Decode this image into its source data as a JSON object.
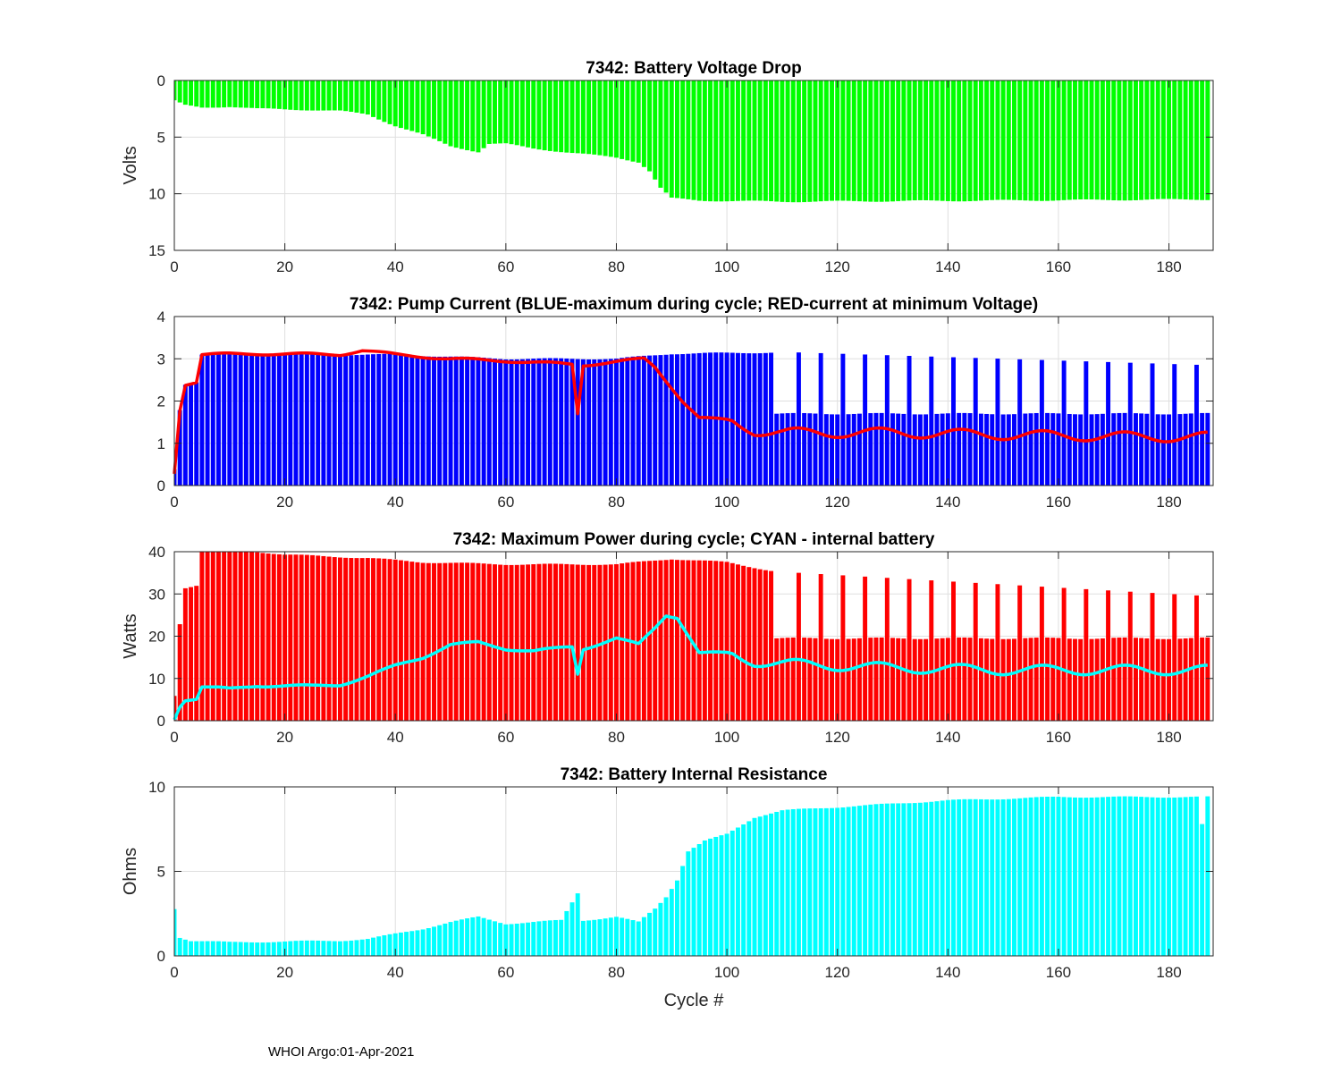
{
  "footer": "WHOI Argo:01-Apr-2021",
  "colors": {
    "green": "#00ff00",
    "blue": "#0000ff",
    "red": "#ff0000",
    "cyan": "#00ffff",
    "axis": "#262626",
    "grid": "#dfdfdf"
  },
  "x_axis": {
    "label": "Cycle #",
    "ticks": [
      0,
      20,
      40,
      60,
      80,
      100,
      120,
      140,
      160,
      180
    ],
    "xlim": [
      0,
      188
    ]
  },
  "chart_data": [
    {
      "type": "bar",
      "title": "7342: Battery Voltage Drop",
      "ylabel": "Volts",
      "xlabel": "",
      "ylim": [
        0,
        15
      ],
      "reversed_y": true,
      "yticks": [
        0,
        5,
        10,
        15
      ],
      "series": [
        {
          "name": "Voltage drop",
          "color": "#00ff00",
          "breakpoints": [
            [
              0,
              1.8
            ],
            [
              1,
              2
            ],
            [
              2,
              2.2
            ],
            [
              5,
              2.4
            ],
            [
              10,
              2.3
            ],
            [
              15,
              2.5
            ],
            [
              25,
              2.6
            ],
            [
              30,
              2.7
            ],
            [
              35,
              3
            ],
            [
              40,
              4
            ],
            [
              45,
              4.8
            ],
            [
              50,
              5.8
            ],
            [
              55,
              6.3
            ],
            [
              57,
              5.6
            ],
            [
              60,
              5.6
            ],
            [
              65,
              6
            ],
            [
              72,
              6.4
            ],
            [
              80,
              6.8
            ],
            [
              84,
              7.2
            ],
            [
              86,
              8
            ],
            [
              88,
              9.5
            ],
            [
              90,
              10.4
            ],
            [
              95,
              10.6
            ],
            [
              110,
              10.7
            ],
            [
              187,
              10.5
            ]
          ]
        }
      ]
    },
    {
      "type": "bar",
      "title": "7342: Pump Current (BLUE-maximum during cycle; RED-current at minimum Voltage)",
      "ylabel": "",
      "xlabel": "",
      "ylim": [
        0,
        4
      ],
      "yticks": [
        0,
        1,
        2,
        3,
        4
      ],
      "series": [
        {
          "name": "Maximum pump current",
          "color": "#0000ff",
          "breakpoints": [
            [
              0,
              0.4
            ],
            [
              1,
              1.8
            ],
            [
              2,
              2.4
            ],
            [
              4,
              2.45
            ],
            [
              5,
              3.1
            ],
            [
              20,
              3.1
            ],
            [
              40,
              3.1
            ],
            [
              60,
              3.0
            ],
            [
              80,
              3.0
            ],
            [
              90,
              3.12
            ],
            [
              108,
              3.15
            ]
          ],
          "after_cycle_108": {
            "base": 1.7,
            "spike": 3.15,
            "spike_period": 4,
            "spike_start": 113,
            "spike_decline_to": 2.85
          }
        },
        {
          "name": "Current at minimum voltage",
          "color": "#ff0000",
          "type": "line",
          "breakpoints": [
            [
              0,
              0.3
            ],
            [
              1,
              1.8
            ],
            [
              2,
              2.4
            ],
            [
              4,
              2.45
            ],
            [
              5,
              3.1
            ],
            [
              15,
              3.12
            ],
            [
              30,
              3.1
            ],
            [
              34,
              3.2
            ],
            [
              40,
              3.1
            ],
            [
              50,
              3.0
            ],
            [
              60,
              2.95
            ],
            [
              72,
              2.87
            ],
            [
              73,
              1.7
            ],
            [
              74,
              2.85
            ],
            [
              85,
              3.0
            ],
            [
              87,
              2.8
            ],
            [
              92,
              2.0
            ],
            [
              95,
              1.6
            ],
            [
              100,
              1.55
            ],
            [
              105,
              1.3
            ],
            [
              110,
              1.25
            ],
            [
              130,
              1.25
            ],
            [
              150,
              1.2
            ],
            [
              175,
              1.15
            ],
            [
              187,
              1.15
            ]
          ],
          "dips": [
            [
              73,
              1.7
            ]
          ]
        }
      ]
    },
    {
      "type": "bar",
      "title": "7342: Maximum Power during cycle; CYAN - internal battery",
      "ylabel": "Watts",
      "xlabel": "",
      "ylim": [
        0,
        40
      ],
      "yticks": [
        0,
        10,
        20,
        30,
        40
      ],
      "series": [
        {
          "name": "Maximum power",
          "color": "#ff0000",
          "breakpoints": [
            [
              0,
              6
            ],
            [
              1,
              23
            ],
            [
              2,
              31.5
            ],
            [
              4,
              32
            ],
            [
              5,
              40
            ],
            [
              15,
              40
            ],
            [
              20,
              39.3
            ],
            [
              35,
              38.5
            ],
            [
              45,
              37.5
            ],
            [
              60,
              37
            ],
            [
              80,
              37
            ],
            [
              90,
              38.3
            ],
            [
              100,
              37.5
            ],
            [
              108,
              35.5
            ]
          ],
          "after_cycle_108": {
            "base": 19.5,
            "spike": 35,
            "spike_period": 4,
            "spike_start": 113,
            "spike_decline_to": 29.5
          }
        },
        {
          "name": "Internal battery",
          "color": "#00ffff",
          "type": "line",
          "breakpoints": [
            [
              0,
              0.5
            ],
            [
              1,
              3.5
            ],
            [
              2,
              5
            ],
            [
              4,
              5.2
            ],
            [
              5,
              8
            ],
            [
              10,
              7.5
            ],
            [
              15,
              8.3
            ],
            [
              25,
              8.2
            ],
            [
              30,
              8.5
            ],
            [
              35,
              10.5
            ],
            [
              40,
              13
            ],
            [
              45,
              15
            ],
            [
              50,
              18
            ],
            [
              55,
              18.5
            ],
            [
              60,
              17
            ],
            [
              65,
              16.5
            ],
            [
              72,
              17.5
            ],
            [
              73,
              11
            ],
            [
              74,
              17
            ],
            [
              80,
              19.5
            ],
            [
              84,
              18
            ],
            [
              87,
              22
            ],
            [
              89,
              25
            ],
            [
              91,
              24.5
            ],
            [
              95,
              16
            ],
            [
              100,
              16
            ],
            [
              105,
              14
            ],
            [
              110,
              13.5
            ],
            [
              130,
              12.5
            ],
            [
              150,
              12
            ],
            [
              175,
              12
            ],
            [
              187,
              12
            ]
          ],
          "dips": [
            [
              73,
              11
            ]
          ]
        }
      ]
    },
    {
      "type": "bar",
      "title": "7342: Battery Internal Resistance",
      "ylabel": "Ohms",
      "xlabel": "Cycle #",
      "ylim": [
        0,
        10
      ],
      "yticks": [
        0,
        5,
        10
      ],
      "series": [
        {
          "name": "Internal resistance",
          "color": "#00ffff",
          "breakpoints": [
            [
              0,
              2.8
            ],
            [
              1,
              1.1
            ],
            [
              3,
              0.9
            ],
            [
              10,
              0.8
            ],
            [
              20,
              0.85
            ],
            [
              30,
              0.9
            ],
            [
              35,
              1.0
            ],
            [
              40,
              1.3
            ],
            [
              45,
              1.6
            ],
            [
              50,
              2.0
            ],
            [
              55,
              2.3
            ],
            [
              60,
              1.9
            ],
            [
              70,
              2.1
            ],
            [
              73,
              3.7
            ],
            [
              74,
              2.1
            ],
            [
              80,
              2.3
            ],
            [
              84,
              2.0
            ],
            [
              87,
              2.8
            ],
            [
              89,
              3.5
            ],
            [
              91,
              4.5
            ],
            [
              93,
              6.2
            ],
            [
              96,
              6.8
            ],
            [
              100,
              7.2
            ],
            [
              105,
              8.2
            ],
            [
              110,
              8.6
            ],
            [
              120,
              8.8
            ],
            [
              140,
              9.2
            ],
            [
              160,
              9.4
            ],
            [
              187,
              9.4
            ]
          ],
          "spikes": [
            [
              73,
              3.7
            ],
            [
              186,
              7.8
            ]
          ]
        }
      ]
    }
  ]
}
